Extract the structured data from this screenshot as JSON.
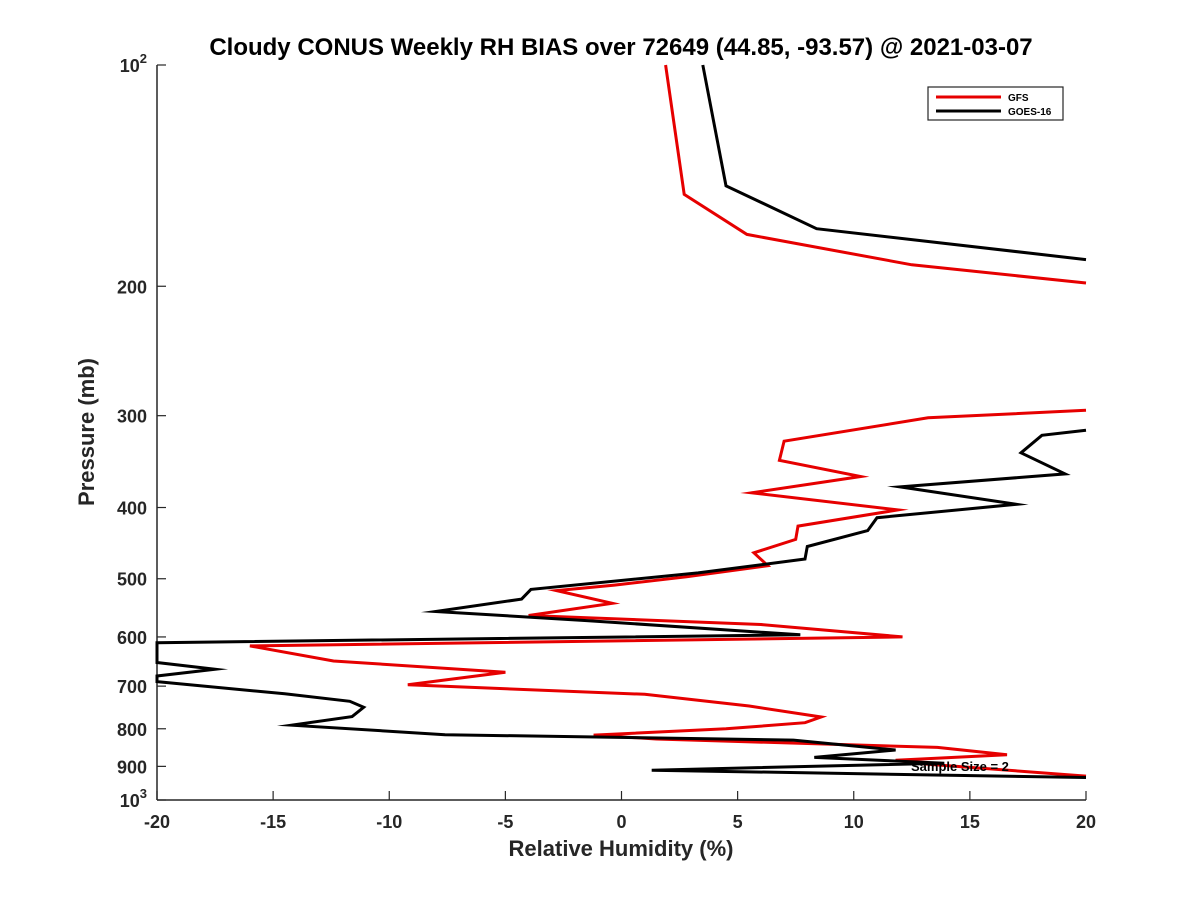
{
  "chart_data": {
    "type": "line",
    "title": "Cloudy CONUS Weekly RH BIAS over 72649 (44.85, -93.57) @ 2021-03-07",
    "xlabel": "Relative Humidity (%)",
    "ylabel": "Pressure (mb)",
    "xlim": [
      -20,
      20
    ],
    "ylim": [
      100,
      1000
    ],
    "y_scale": "log",
    "y_reversed": true,
    "x_ticks": [
      -20,
      -15,
      -10,
      -5,
      0,
      5,
      10,
      15,
      20
    ],
    "x_tick_labels": [
      "-20",
      "-15",
      "-10",
      "-5",
      "0",
      "5",
      "10",
      "15",
      "20"
    ],
    "y_ticks": [
      100,
      200,
      300,
      400,
      500,
      600,
      700,
      800,
      900,
      1000
    ],
    "y_tick_labels": [
      {
        "base": "10",
        "exp": "2"
      },
      {
        "base": "200",
        "exp": ""
      },
      {
        "base": "300",
        "exp": ""
      },
      {
        "base": "400",
        "exp": ""
      },
      {
        "base": "500",
        "exp": ""
      },
      {
        "base": "600",
        "exp": ""
      },
      {
        "base": "700",
        "exp": ""
      },
      {
        "base": "800",
        "exp": ""
      },
      {
        "base": "900",
        "exp": ""
      },
      {
        "base": "10",
        "exp": "3"
      }
    ],
    "grid": false,
    "legend_position": "top-right",
    "annotation": "Sample Size = 2",
    "series": [
      {
        "name": "GFS",
        "color": "#e60000",
        "segments": [
          [
            [
              1.9,
              100
            ],
            [
              2.7,
              150
            ],
            [
              5.4,
              170
            ],
            [
              12.5,
              187
            ],
            [
              20,
              198
            ]
          ],
          [
            [
              20,
              295
            ],
            [
              13.2,
              302
            ],
            [
              7.0,
              325
            ],
            [
              6.8,
              345
            ],
            [
              10.3,
              363
            ],
            [
              5.6,
              382
            ],
            [
              11.9,
              403
            ],
            [
              7.6,
              424
            ],
            [
              7.5,
              442
            ],
            [
              5.7,
              461
            ],
            [
              6.3,
              480
            ],
            [
              2.8,
              497
            ],
            [
              -0.3,
              510
            ],
            [
              -2.8,
              519
            ],
            [
              -0.4,
              540
            ],
            [
              -4.0,
              561
            ],
            [
              6.0,
              577
            ],
            [
              12.1,
              600
            ],
            [
              -16.0,
              617
            ],
            [
              -12.4,
              647
            ],
            [
              -5.0,
              670
            ],
            [
              -9.2,
              697
            ],
            [
              1.0,
              718
            ],
            [
              5.5,
              745
            ],
            [
              8.6,
              771
            ],
            [
              7.9,
              785
            ],
            [
              4.5,
              800
            ],
            [
              -1.2,
              816
            ],
            [
              1.5,
              826
            ],
            [
              13.6,
              848
            ],
            [
              16.6,
              868
            ],
            [
              11.8,
              883
            ],
            [
              13.0,
              893
            ],
            [
              20,
              928
            ]
          ]
        ]
      },
      {
        "name": "GOES-16",
        "color": "#000000",
        "segments": [
          [
            [
              3.5,
              100
            ],
            [
              4.5,
              146
            ],
            [
              8.4,
              167
            ],
            [
              20,
              184
            ]
          ],
          [
            [
              20,
              314
            ],
            [
              18.1,
              319
            ],
            [
              17.2,
              337
            ],
            [
              19.1,
              360
            ],
            [
              12.0,
              375
            ],
            [
              17.0,
              396
            ],
            [
              11.0,
              413
            ],
            [
              10.6,
              430
            ],
            [
              8.0,
              452
            ],
            [
              7.9,
              470
            ],
            [
              3.3,
              491
            ],
            [
              -3.9,
              517
            ],
            [
              -4.3,
              533
            ],
            [
              -8.0,
              554
            ],
            [
              -1.5,
              570
            ],
            [
              7.7,
              596
            ],
            [
              -20,
              611
            ],
            [
              -20,
              650
            ],
            [
              -17.5,
              664
            ],
            [
              -20,
              678
            ],
            [
              -20,
              690
            ],
            [
              -14.5,
              717
            ],
            [
              -11.7,
              734
            ],
            [
              -11.1,
              748
            ],
            [
              -11.6,
              770
            ],
            [
              -14.2,
              791
            ],
            [
              -7.6,
              815
            ],
            [
              7.4,
              829
            ],
            [
              11.8,
              855
            ],
            [
              8.3,
              875
            ],
            [
              13.9,
              891
            ],
            [
              1.3,
              911
            ],
            [
              20,
              932
            ]
          ]
        ]
      }
    ]
  }
}
